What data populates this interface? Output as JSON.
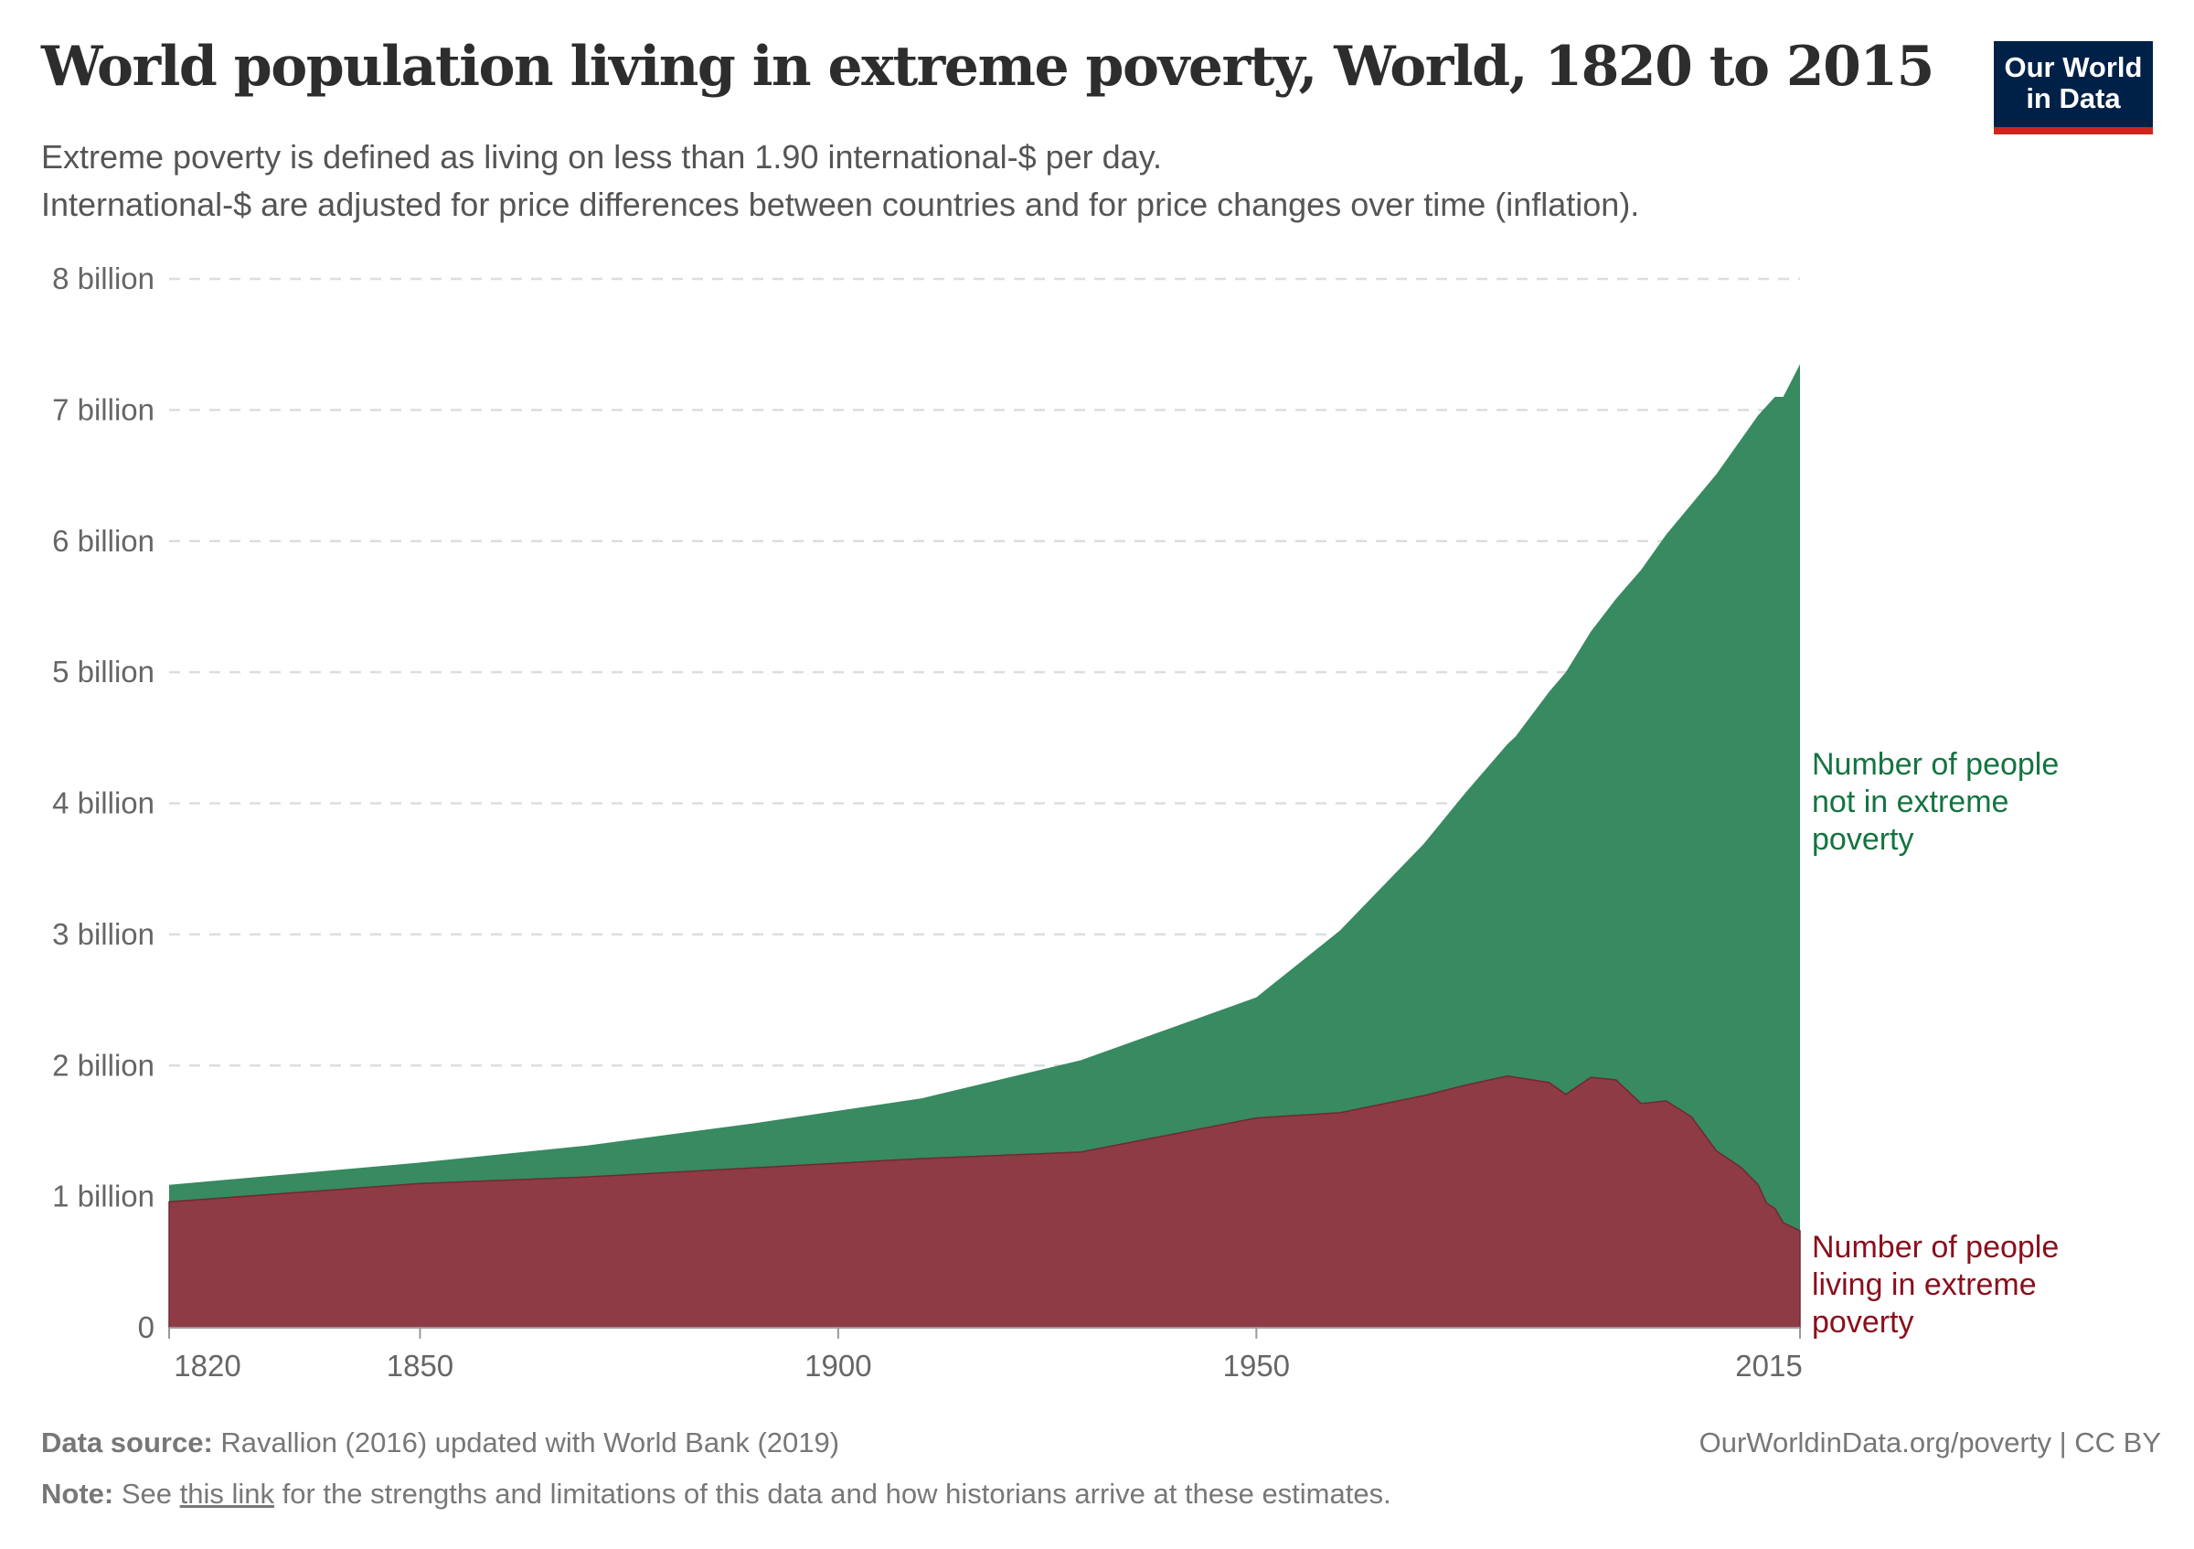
{
  "header": {
    "title": "World population living in extreme poverty, World, 1820 to 2015",
    "subtitle_line1": "Extreme poverty is defined as living on less than 1.90 international-$ per day.",
    "subtitle_line2": "International-$ are adjusted for price differences between countries and for price changes over time (inflation).",
    "logo_line1": "Our World",
    "logo_line2": "in Data"
  },
  "footer": {
    "source_label": "Data source:",
    "source_text": "Ravallion (2016) updated with World Bank (2019)",
    "url": "OurWorldinData.org/poverty | CC BY",
    "note_label": "Note:",
    "note_pre": "See",
    "note_link": "this link",
    "note_post": "for the strengths and limitations of this data and how historians arrive at these estimates."
  },
  "chart_data": {
    "type": "area",
    "stacked": true,
    "title": "World population living in extreme poverty, World, 1820 to 2015",
    "xlim": [
      1820,
      2015
    ],
    "ylim": [
      0,
      8000000000
    ],
    "grid": "horizontal dashed",
    "legend": "right (inline labels)",
    "y_ticks": [
      {
        "value": 0,
        "label": "0"
      },
      {
        "value": 1000000000,
        "label": "1 billion"
      },
      {
        "value": 2000000000,
        "label": "2 billion"
      },
      {
        "value": 3000000000,
        "label": "3 billion"
      },
      {
        "value": 4000000000,
        "label": "4 billion"
      },
      {
        "value": 5000000000,
        "label": "5 billion"
      },
      {
        "value": 6000000000,
        "label": "6 billion"
      },
      {
        "value": 7000000000,
        "label": "7 billion"
      },
      {
        "value": 8000000000,
        "label": "8 billion"
      }
    ],
    "x_ticks": [
      {
        "value": 1820,
        "label": "1820"
      },
      {
        "value": 1850,
        "label": "1850"
      },
      {
        "value": 1900,
        "label": "1900"
      },
      {
        "value": 1950,
        "label": "1950"
      },
      {
        "value": 2015,
        "label": "2015"
      }
    ],
    "x": [
      1820,
      1850,
      1870,
      1890,
      1910,
      1929,
      1950,
      1960,
      1970,
      1975,
      1980,
      1981,
      1985,
      1987,
      1990,
      1993,
      1996,
      1999,
      2002,
      2005,
      2008,
      2010,
      2011,
      2012,
      2013,
      2015
    ],
    "series": [
      {
        "name": "Number of people living in extreme poverty",
        "label_lines": [
          "Number of people",
          "living in extreme",
          "poverty"
        ],
        "color": "#8e3b45",
        "label_color": "#8a0f1c",
        "values_billion": [
          0.96,
          1.1,
          1.15,
          1.22,
          1.29,
          1.34,
          1.6,
          1.64,
          1.77,
          1.85,
          1.92,
          1.91,
          1.87,
          1.78,
          1.91,
          1.89,
          1.71,
          1.73,
          1.61,
          1.35,
          1.22,
          1.09,
          0.95,
          0.91,
          0.8,
          0.74
        ]
      },
      {
        "name": "Number of people not in extreme poverty",
        "label_lines": [
          "Number of people",
          "not in extreme",
          "poverty"
        ],
        "color": "#388a60",
        "label_color": "#137440",
        "total_billion": [
          1.09,
          1.26,
          1.39,
          1.56,
          1.75,
          2.04,
          2.52,
          3.03,
          3.69,
          4.08,
          4.45,
          4.51,
          4.85,
          5.0,
          5.31,
          5.56,
          5.78,
          6.05,
          6.28,
          6.51,
          6.78,
          6.96,
          7.03,
          7.1,
          7.1,
          7.35
        ]
      }
    ]
  }
}
